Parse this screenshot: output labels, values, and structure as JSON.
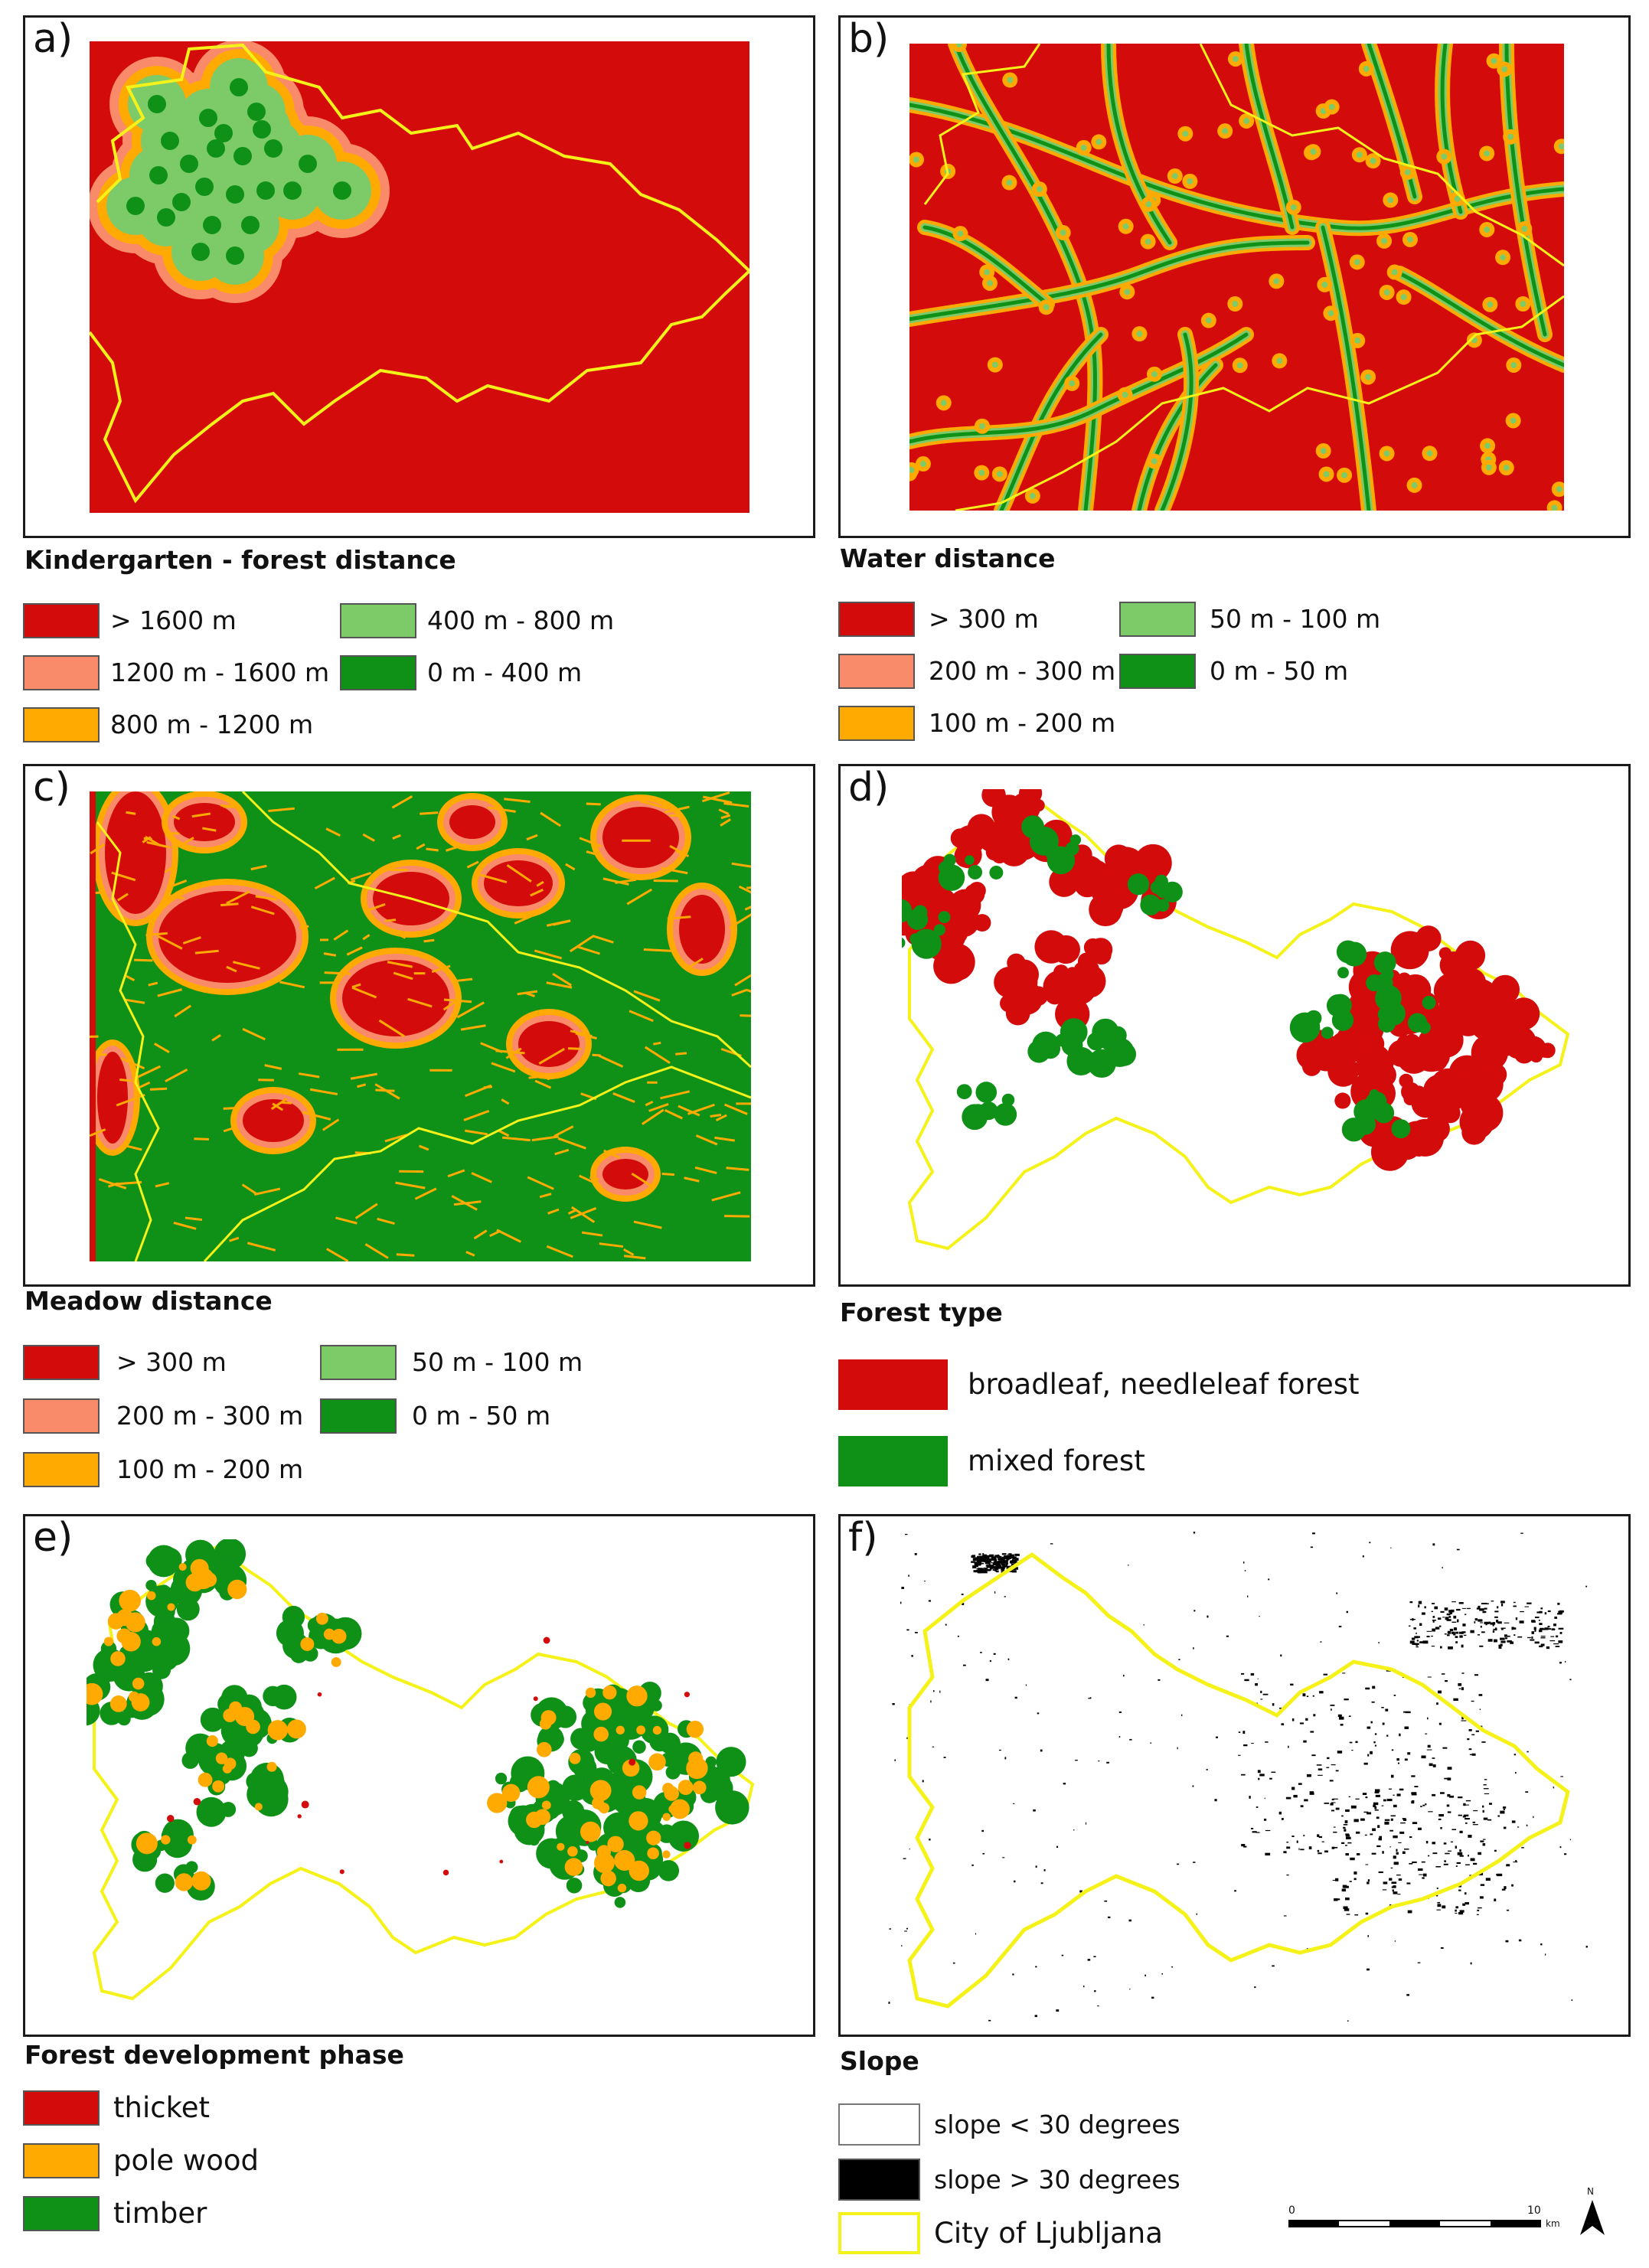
{
  "colors": {
    "red": "#d40b0b",
    "salmon": "#fa8b6a",
    "orange": "#ffaa00",
    "light_green": "#7ccb68",
    "green": "#0f9118",
    "boundary": "#f5f21a",
    "black": "#000000"
  },
  "panels": [
    {
      "letter": "a)",
      "title": "Kindergarten - forest distance",
      "legend": [
        {
          "label": "> 1600 m",
          "color": "#d40b0b"
        },
        {
          "label": "1200 m - 1600 m",
          "color": "#fa8b6a"
        },
        {
          "label": "800 m - 1200 m",
          "color": "#ffaa00"
        },
        {
          "label": "400 m - 800 m",
          "color": "#7ccb68"
        },
        {
          "label": "0 m - 400 m",
          "color": "#0f9118"
        }
      ]
    },
    {
      "letter": "b)",
      "title": "Water distance",
      "legend": [
        {
          "label": "> 300 m",
          "color": "#d40b0b"
        },
        {
          "label": "200 m - 300 m",
          "color": "#fa8b6a"
        },
        {
          "label": "100 m - 200 m",
          "color": "#ffaa00"
        },
        {
          "label": "50 m - 100 m",
          "color": "#7ccb68"
        },
        {
          "label": "0 m - 50 m",
          "color": "#0f9118"
        }
      ]
    },
    {
      "letter": "c)",
      "title": "Meadow distance",
      "legend": [
        {
          "label": "> 300 m",
          "color": "#d40b0b"
        },
        {
          "label": "200 m - 300 m",
          "color": "#fa8b6a"
        },
        {
          "label": "100 m - 200 m",
          "color": "#ffaa00"
        },
        {
          "label": "50 m - 100 m",
          "color": "#7ccb68"
        },
        {
          "label": "0 m - 50 m",
          "color": "#0f9118"
        }
      ]
    },
    {
      "letter": "d)",
      "title": "Forest type",
      "legend": [
        {
          "label": "broadleaf, needleleaf forest",
          "color": "#d40b0b"
        },
        {
          "label": "mixed forest",
          "color": "#0f9118"
        }
      ]
    },
    {
      "letter": "e)",
      "title": "Forest development phase",
      "legend": [
        {
          "label": "thicket",
          "color": "#d40b0b"
        },
        {
          "label": "pole wood",
          "color": "#ffaa00"
        },
        {
          "label": "timber",
          "color": "#0f9118"
        }
      ]
    },
    {
      "letter": "f)",
      "title": "Slope",
      "legend": [
        {
          "label": "slope < 30 degrees",
          "color": "#ffffff"
        },
        {
          "label": "slope > 30 degrees",
          "color": "#000000"
        },
        {
          "label": "City of Ljubljana",
          "color": "#f5f21a"
        }
      ]
    }
  ],
  "scale_bar": {
    "start": "0",
    "end": "10",
    "unit": "km"
  },
  "north_arrow": {
    "label": "N",
    "icon": "north-arrow-icon"
  }
}
